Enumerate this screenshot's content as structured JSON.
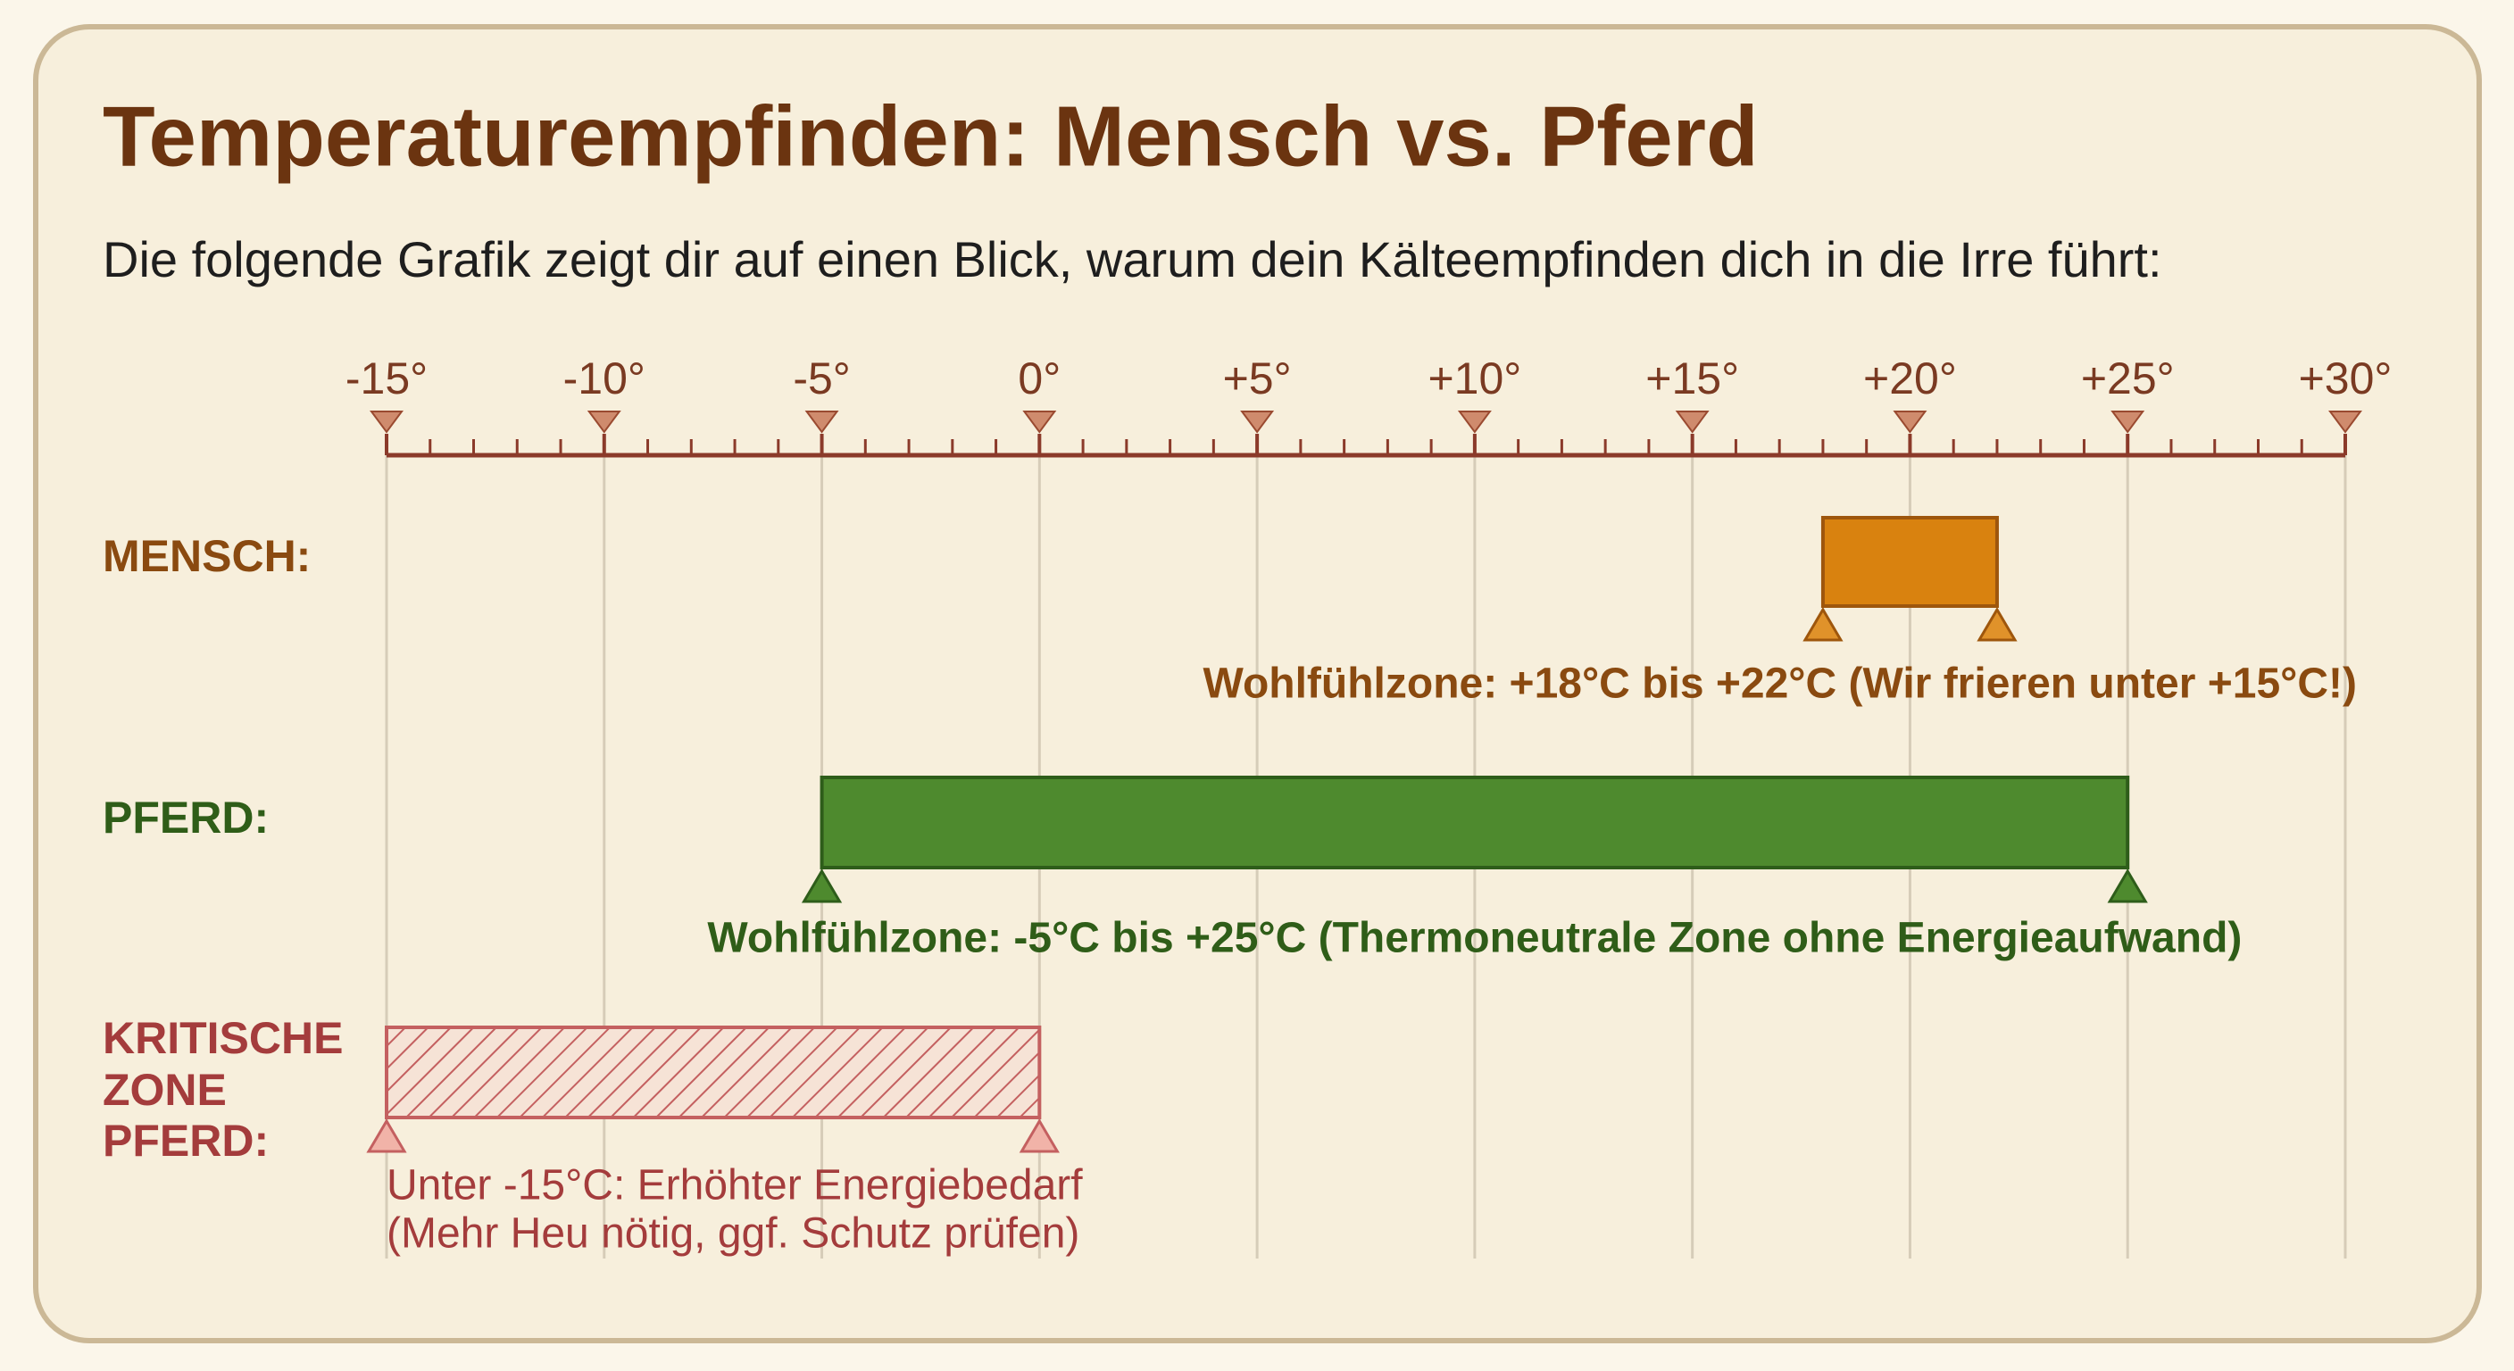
{
  "chart_data": {
    "type": "range",
    "title": "Temperaturempfinden: Mensch vs. Pferd",
    "subtitle": "Die folgende Grafik zeigt dir auf einen Blick, warum dein Kälteempfinden dich in die Irre führt:",
    "xlim": [
      -15,
      30
    ],
    "xticks": [
      {
        "value": -15,
        "label": "-15°"
      },
      {
        "value": -10,
        "label": "-10°"
      },
      {
        "value": -5,
        "label": "-5°"
      },
      {
        "value": 0,
        "label": "0°"
      },
      {
        "value": 5,
        "label": "+5°"
      },
      {
        "value": 10,
        "label": "+10°"
      },
      {
        "value": 15,
        "label": "+15°"
      },
      {
        "value": 20,
        "label": "+20°"
      },
      {
        "value": 25,
        "label": "+25°"
      },
      {
        "value": 30,
        "label": "+30°"
      }
    ],
    "grid": true,
    "series": [
      {
        "name": [
          "MENSCH:"
        ],
        "color": "#d9820f",
        "values": [
          18,
          22
        ],
        "note": [
          "Wohlfühlzone: +18°C bis +22°C (Wir frieren unter +15°C!)"
        ]
      },
      {
        "name": [
          "PFERD:"
        ],
        "color": "#4e8a2e",
        "values": [
          -5,
          25
        ],
        "note": [
          "Wohlfühlzone: -5°C bis +25°C (Thermoneutrale Zone ohne Energieaufwand)"
        ]
      },
      {
        "name": [
          "KRITISCHE",
          "ZONE",
          "PFERD:"
        ],
        "color": "#c46060",
        "hatched": true,
        "values": [
          -15,
          0
        ],
        "note": [
          "Unter -15°C: Erhöhter Energiebedarf",
          "(Mehr Heu nötig, ggf. Schutz prüfen)"
        ]
      }
    ]
  }
}
